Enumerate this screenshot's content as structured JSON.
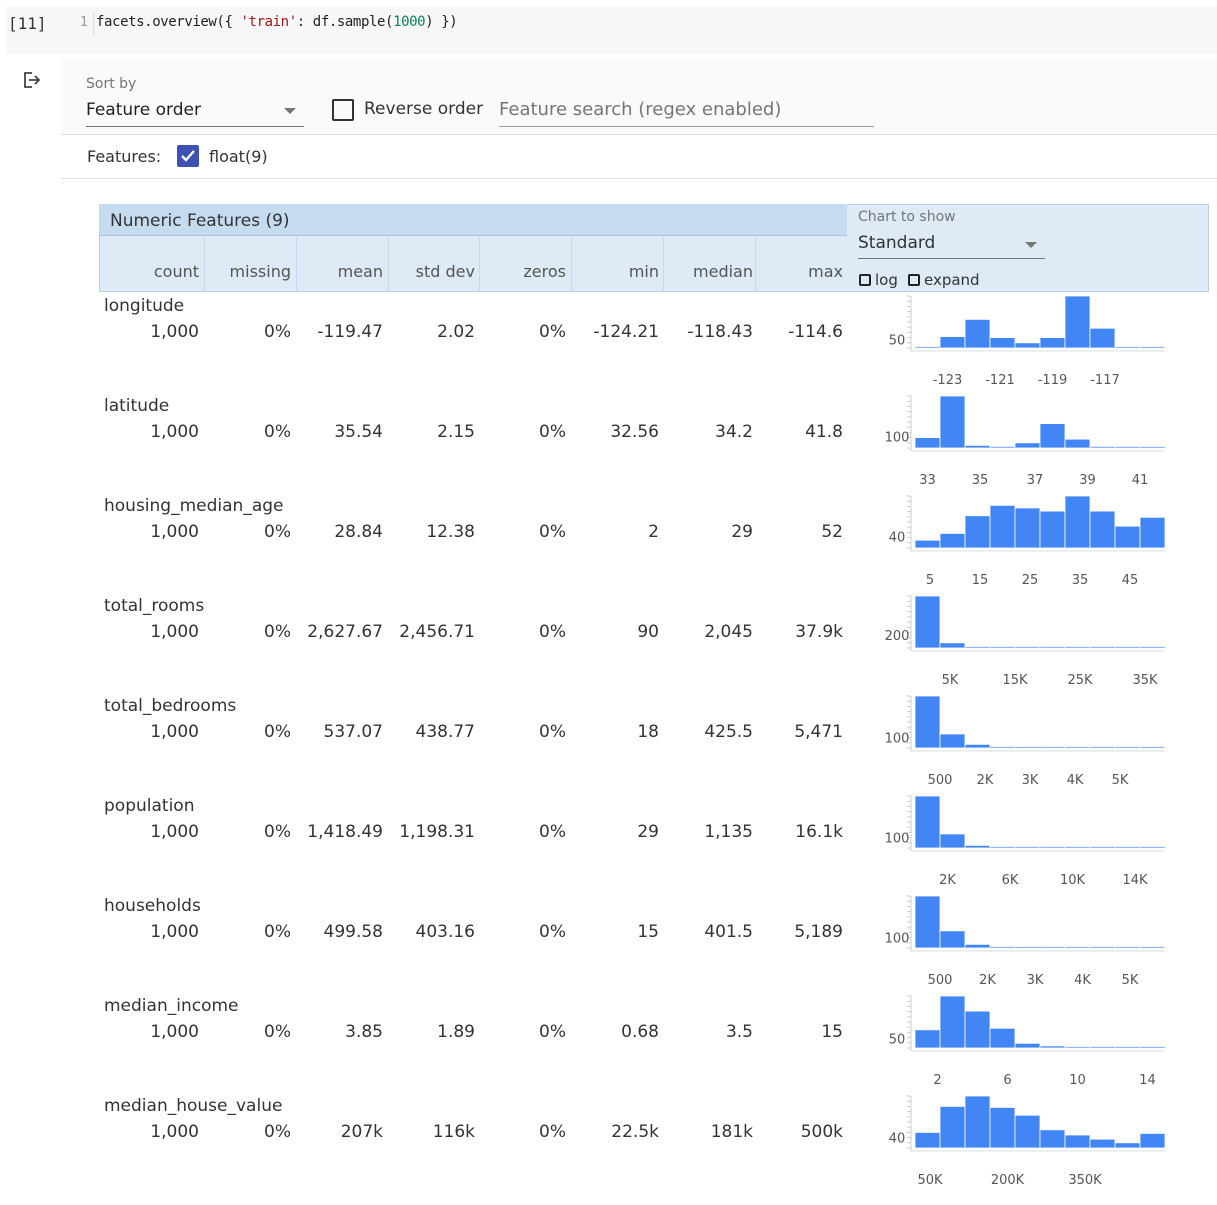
{
  "cell": {
    "exec_count": "[11]",
    "line_number": "1",
    "code_parts": {
      "p1": "facets.overview({ ",
      "p2": "'train'",
      "p3": ": df.sample(",
      "p4": "1000",
      "p5": ") })"
    }
  },
  "controls": {
    "sort_by_label": "Sort by",
    "sort_by_value": "Feature order",
    "reverse_label": "Reverse order",
    "search_placeholder": "Feature search (regex enabled)",
    "features_label": "Features:",
    "float_label": "float(9)"
  },
  "table": {
    "title": "Numeric Features (9)",
    "columns": [
      "count",
      "missing",
      "mean",
      "std dev",
      "zeros",
      "min",
      "median",
      "max"
    ],
    "chart_show_label": "Chart to show",
    "chart_show_value": "Standard",
    "log_label": "log",
    "expand_label": "expand"
  },
  "features": [
    {
      "name": "longitude",
      "count": "1,000",
      "missing": "0%",
      "mean": "-119.47",
      "std": "2.02",
      "zeros": "0%",
      "min": "-124.21",
      "median": "-118.43",
      "max": "-114.6",
      "ytick": "50",
      "ytick_frac": 0.16,
      "xticks": [
        "-123",
        "-121",
        "-119",
        "-117"
      ],
      "xtick_pos": [
        0.13,
        0.34,
        0.55,
        0.76
      ],
      "bars": [
        0.02,
        0.22,
        0.55,
        0.2,
        0.1,
        0.2,
        1.0,
        0.38,
        0.02,
        0.02
      ]
    },
    {
      "name": "latitude",
      "count": "1,000",
      "missing": "0%",
      "mean": "35.54",
      "std": "2.15",
      "zeros": "0%",
      "min": "32.56",
      "median": "34.2",
      "max": "41.8",
      "ytick": "100",
      "ytick_frac": 0.22,
      "xticks": [
        "33",
        "35",
        "37",
        "39",
        "41"
      ],
      "xtick_pos": [
        0.05,
        0.26,
        0.48,
        0.69,
        0.9
      ],
      "bars": [
        0.2,
        1.0,
        0.05,
        0.03,
        0.1,
        0.47,
        0.17,
        0.03,
        0.03,
        0.02
      ]
    },
    {
      "name": "housing_median_age",
      "count": "1,000",
      "missing": "0%",
      "mean": "28.84",
      "std": "12.38",
      "zeros": "0%",
      "min": "2",
      "median": "29",
      "max": "52",
      "ytick": "40",
      "ytick_frac": 0.22,
      "xticks": [
        "5",
        "15",
        "25",
        "35",
        "45"
      ],
      "xtick_pos": [
        0.06,
        0.26,
        0.46,
        0.66,
        0.86
      ],
      "bars": [
        0.15,
        0.28,
        0.62,
        0.82,
        0.77,
        0.71,
        1.0,
        0.71,
        0.42,
        0.59
      ]
    },
    {
      "name": "total_rooms",
      "count": "1,000",
      "missing": "0%",
      "mean": "2,627.67",
      "std": "2,456.71",
      "zeros": "0%",
      "min": "90",
      "median": "2,045",
      "max": "37.9k",
      "ytick": "200",
      "ytick_frac": 0.25,
      "xticks": [
        "5K",
        "15K",
        "25K",
        "35K"
      ],
      "xtick_pos": [
        0.14,
        0.4,
        0.66,
        0.92
      ],
      "bars": [
        1.0,
        0.1,
        0.02,
        0.02,
        0.01,
        0.01,
        0.01,
        0.01,
        0.01,
        0.01
      ]
    },
    {
      "name": "total_bedrooms",
      "count": "1,000",
      "missing": "0%",
      "mean": "537.07",
      "std": "438.77",
      "zeros": "0%",
      "min": "18",
      "median": "425.5",
      "max": "5,471",
      "ytick": "100",
      "ytick_frac": 0.2,
      "xticks": [
        "500",
        "2K",
        "3K",
        "4K",
        "5K"
      ],
      "xtick_pos": [
        0.1,
        0.28,
        0.46,
        0.64,
        0.82
      ],
      "bars": [
        1.0,
        0.27,
        0.07,
        0.02,
        0.01,
        0.01,
        0.01,
        0.01,
        0.01,
        0.01
      ]
    },
    {
      "name": "population",
      "count": "1,000",
      "missing": "0%",
      "mean": "1,418.49",
      "std": "1,198.31",
      "zeros": "0%",
      "min": "29",
      "median": "1,135",
      "max": "16.1k",
      "ytick": "100",
      "ytick_frac": 0.2,
      "xticks": [
        "2K",
        "6K",
        "10K",
        "14K"
      ],
      "xtick_pos": [
        0.13,
        0.38,
        0.63,
        0.88
      ],
      "bars": [
        1.0,
        0.27,
        0.05,
        0.02,
        0.01,
        0.01,
        0.01,
        0.01,
        0.01,
        0.01
      ]
    },
    {
      "name": "households",
      "count": "1,000",
      "missing": "0%",
      "mean": "499.58",
      "std": "403.16",
      "zeros": "0%",
      "min": "15",
      "median": "401.5",
      "max": "5,189",
      "ytick": "100",
      "ytick_frac": 0.2,
      "xticks": [
        "500",
        "2K",
        "3K",
        "4K",
        "5K"
      ],
      "xtick_pos": [
        0.1,
        0.29,
        0.48,
        0.67,
        0.86
      ],
      "bars": [
        1.0,
        0.33,
        0.07,
        0.02,
        0.01,
        0.01,
        0.01,
        0.01,
        0.01,
        0.01
      ]
    },
    {
      "name": "median_income",
      "count": "1,000",
      "missing": "0%",
      "mean": "3.85",
      "std": "1.89",
      "zeros": "0%",
      "min": "0.68",
      "median": "3.5",
      "max": "15",
      "ytick": "50",
      "ytick_frac": 0.18,
      "xticks": [
        "2",
        "6",
        "10",
        "14"
      ],
      "xtick_pos": [
        0.09,
        0.37,
        0.65,
        0.93
      ],
      "bars": [
        0.35,
        1.0,
        0.71,
        0.38,
        0.09,
        0.04,
        0.02,
        0.01,
        0.01,
        0.01
      ]
    },
    {
      "name": "median_house_value",
      "count": "1,000",
      "missing": "0%",
      "mean": "207k",
      "std": "116k",
      "zeros": "0%",
      "min": "22.5k",
      "median": "181k",
      "max": "500k",
      "ytick": "40",
      "ytick_frac": 0.2,
      "xticks": [
        "50K",
        "200K",
        "350K"
      ],
      "xtick_pos": [
        0.06,
        0.37,
        0.68
      ],
      "bars": [
        0.3,
        0.8,
        1.0,
        0.78,
        0.63,
        0.35,
        0.25,
        0.17,
        0.1,
        0.28
      ]
    }
  ]
}
